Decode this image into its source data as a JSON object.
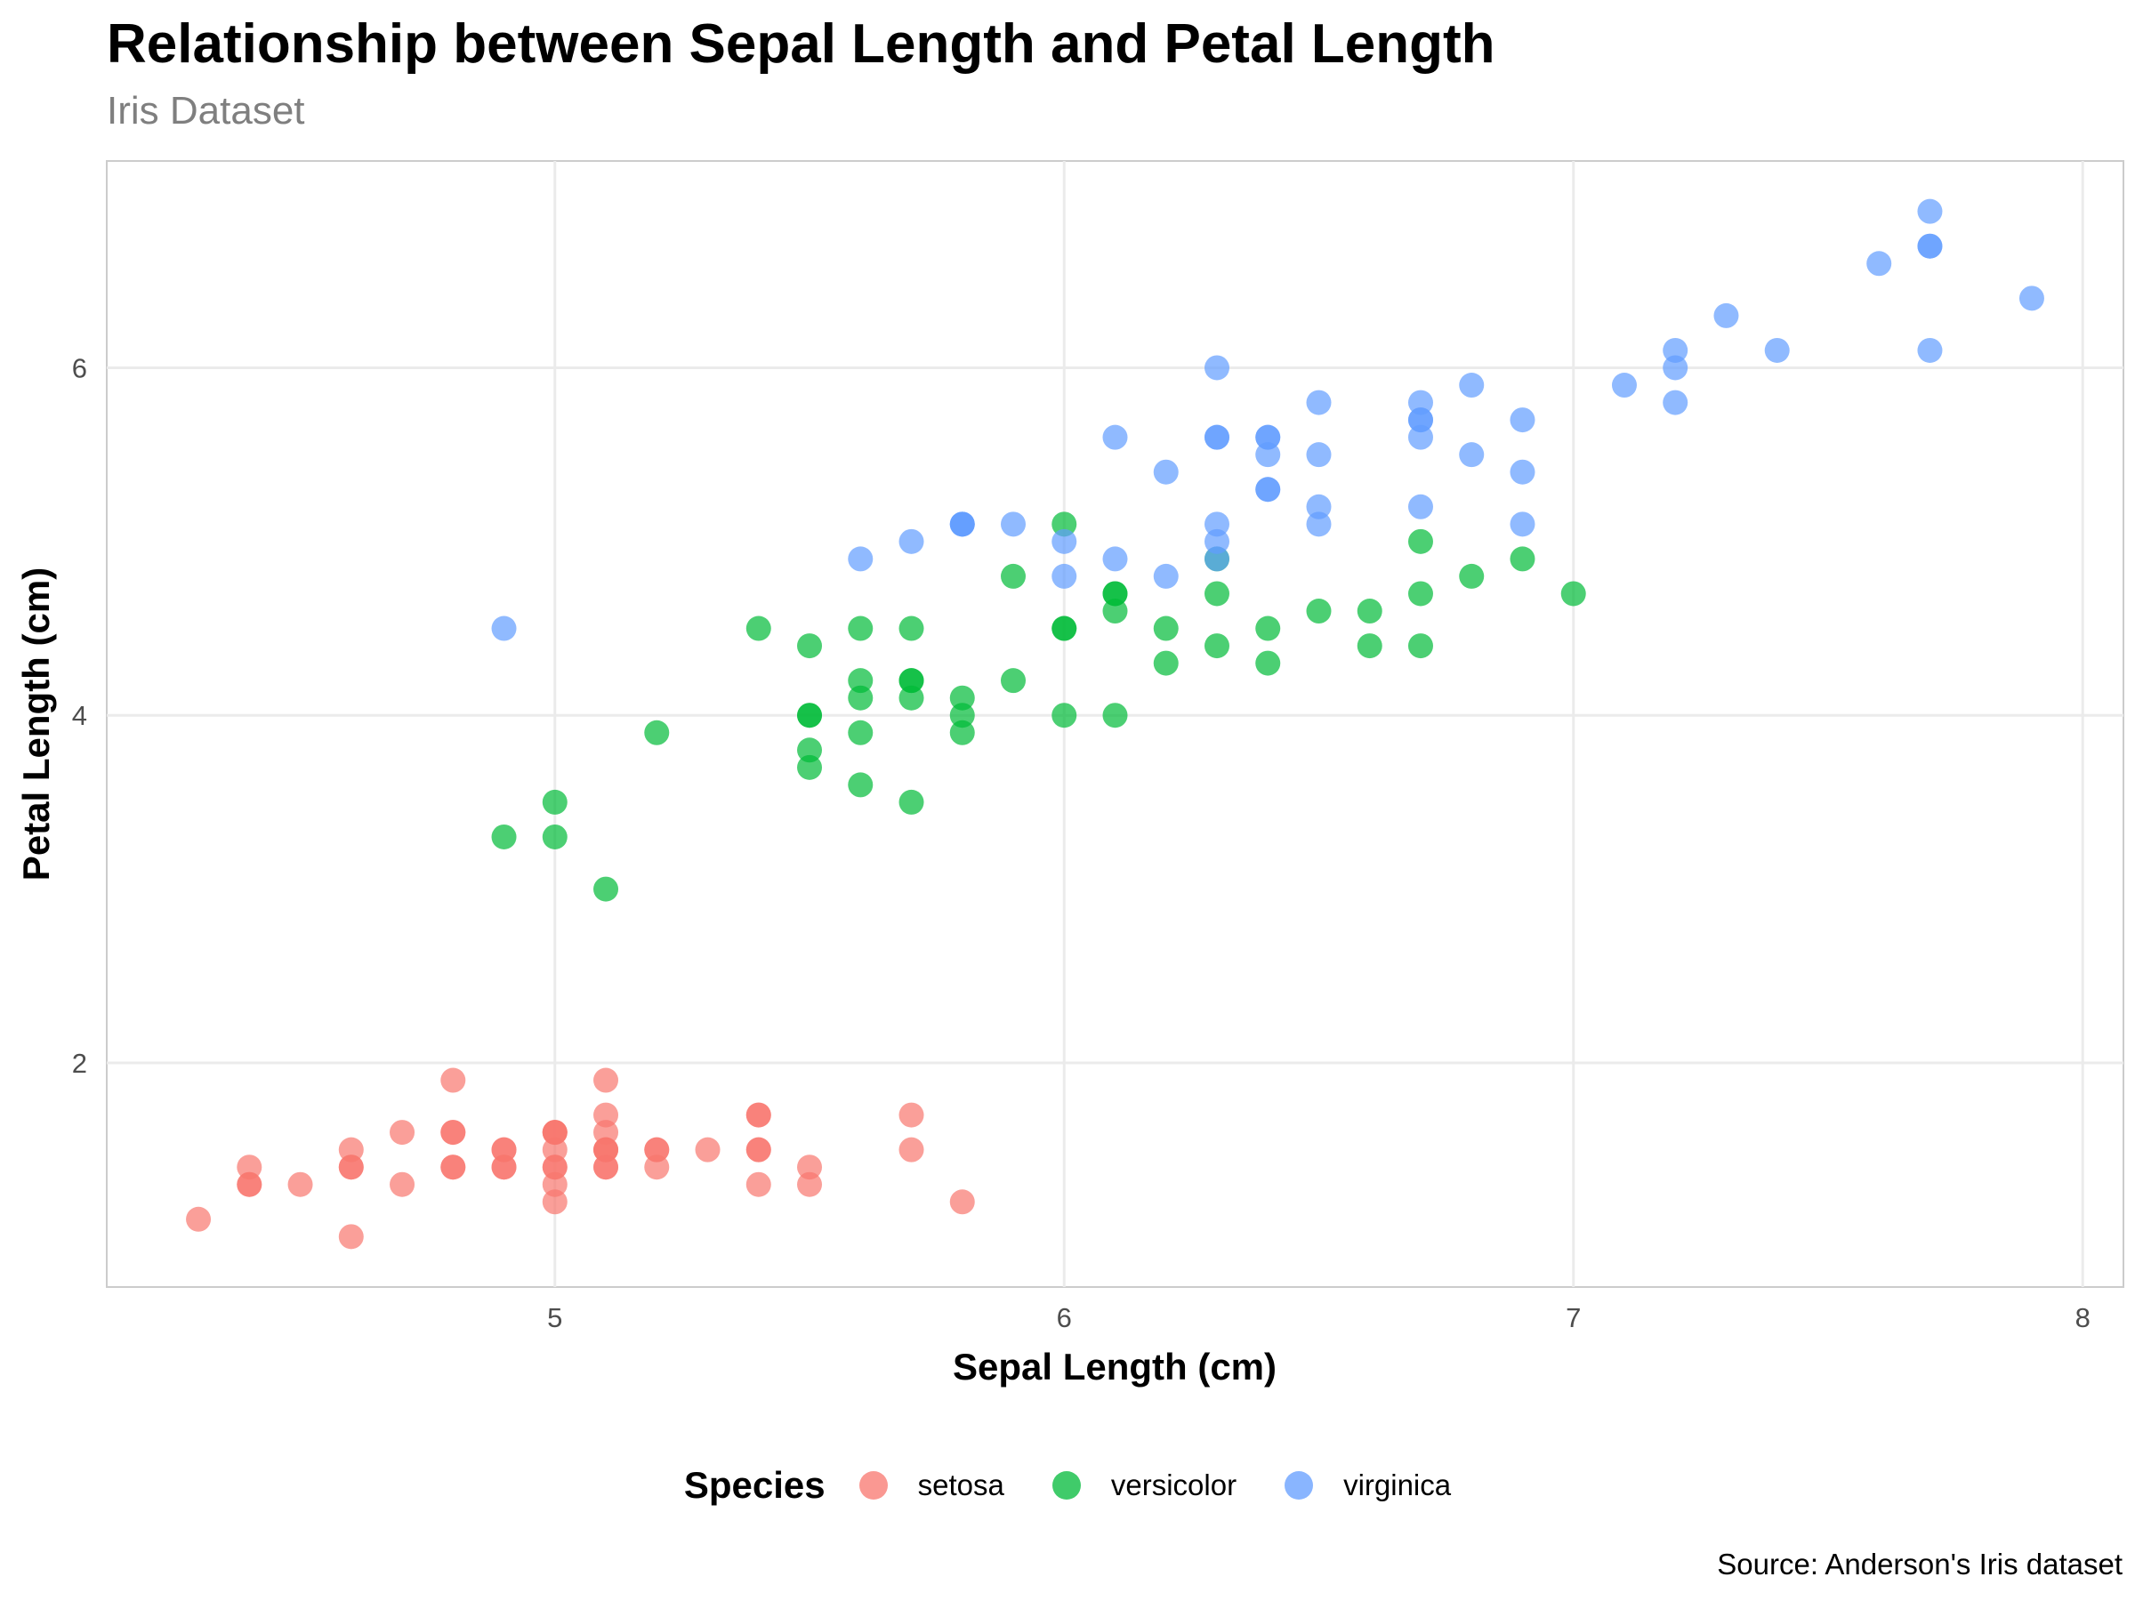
{
  "chart_data": {
    "type": "scatter",
    "title": "Relationship between Sepal Length and Petal Length",
    "subtitle": "Iris Dataset",
    "xlabel": "Sepal Length (cm)",
    "ylabel": "Petal Length (cm)",
    "caption": "Source: Anderson's Iris dataset",
    "xlim": [
      4.12,
      8.08
    ],
    "ylim": [
      0.71,
      7.19
    ],
    "xticks": [
      5,
      6,
      7,
      8
    ],
    "yticks": [
      2,
      4,
      6
    ],
    "grid": true,
    "legend": {
      "title": "Species",
      "position": "bottom"
    },
    "series": [
      {
        "name": "setosa",
        "color": "#F8766D",
        "x": [
          5.1,
          4.9,
          4.7,
          4.6,
          5.0,
          5.4,
          4.6,
          5.0,
          4.4,
          4.9,
          5.4,
          4.8,
          4.8,
          4.3,
          5.8,
          5.7,
          5.4,
          5.1,
          5.7,
          5.1,
          5.4,
          5.1,
          4.6,
          5.1,
          4.8,
          5.0,
          5.0,
          5.2,
          5.2,
          4.7,
          4.8,
          5.4,
          5.2,
          5.5,
          4.9,
          5.0,
          5.5,
          4.9,
          4.4,
          5.1,
          5.0,
          4.5,
          4.4,
          5.0,
          5.1,
          4.8,
          5.1,
          4.6,
          5.3,
          5.0
        ],
        "y": [
          1.4,
          1.4,
          1.3,
          1.5,
          1.4,
          1.7,
          1.4,
          1.5,
          1.4,
          1.5,
          1.5,
          1.6,
          1.4,
          1.1,
          1.2,
          1.5,
          1.3,
          1.4,
          1.7,
          1.5,
          1.7,
          1.5,
          1.0,
          1.7,
          1.9,
          1.6,
          1.6,
          1.5,
          1.4,
          1.6,
          1.6,
          1.5,
          1.5,
          1.4,
          1.5,
          1.2,
          1.3,
          1.4,
          1.3,
          1.5,
          1.3,
          1.3,
          1.3,
          1.6,
          1.9,
          1.4,
          1.6,
          1.4,
          1.5,
          1.4
        ]
      },
      {
        "name": "versicolor",
        "color": "#00BA38",
        "x": [
          7.0,
          6.4,
          6.9,
          5.5,
          6.5,
          5.7,
          6.3,
          4.9,
          6.6,
          5.2,
          5.0,
          5.9,
          6.0,
          6.1,
          5.6,
          6.7,
          5.6,
          5.8,
          6.2,
          5.6,
          5.9,
          6.1,
          6.3,
          6.1,
          6.4,
          6.6,
          6.8,
          6.7,
          6.0,
          5.7,
          5.5,
          5.5,
          5.8,
          6.0,
          5.4,
          6.0,
          6.7,
          6.3,
          5.6,
          5.5,
          5.5,
          6.1,
          5.8,
          5.0,
          5.6,
          5.7,
          5.7,
          6.2,
          5.1,
          5.7
        ],
        "y": [
          4.7,
          4.5,
          4.9,
          4.0,
          4.6,
          4.5,
          4.7,
          3.3,
          4.6,
          3.9,
          3.5,
          4.2,
          4.0,
          4.7,
          3.6,
          4.4,
          4.5,
          4.1,
          4.5,
          3.9,
          4.8,
          4.0,
          4.9,
          4.7,
          4.3,
          4.4,
          4.8,
          5.0,
          4.5,
          3.5,
          3.8,
          3.7,
          3.9,
          5.1,
          4.5,
          4.5,
          4.7,
          4.4,
          4.1,
          4.0,
          4.4,
          4.6,
          4.0,
          3.3,
          4.2,
          4.2,
          4.2,
          4.3,
          3.0,
          4.1
        ]
      },
      {
        "name": "virginica",
        "color": "#619CFF",
        "x": [
          6.3,
          5.8,
          7.1,
          6.3,
          6.5,
          7.6,
          4.9,
          7.3,
          6.7,
          7.2,
          6.5,
          6.4,
          6.8,
          5.7,
          5.8,
          6.4,
          6.5,
          7.7,
          7.7,
          6.0,
          6.9,
          5.6,
          7.7,
          6.3,
          6.7,
          7.2,
          6.2,
          6.1,
          6.4,
          7.2,
          7.4,
          7.9,
          6.4,
          6.3,
          6.1,
          7.7,
          6.3,
          6.4,
          6.0,
          6.9,
          6.7,
          6.9,
          5.8,
          6.8,
          6.7,
          6.7,
          6.3,
          6.5,
          6.2,
          5.9
        ],
        "y": [
          6.0,
          5.1,
          5.9,
          5.6,
          5.8,
          6.6,
          4.5,
          6.3,
          5.8,
          6.1,
          5.1,
          5.3,
          5.5,
          5.0,
          5.1,
          5.3,
          5.5,
          6.7,
          6.9,
          5.0,
          5.7,
          4.9,
          6.7,
          4.9,
          5.7,
          6.0,
          4.8,
          4.9,
          5.6,
          5.8,
          6.1,
          6.4,
          5.6,
          5.1,
          5.6,
          6.1,
          5.6,
          5.5,
          4.8,
          5.4,
          5.6,
          5.1,
          5.1,
          5.9,
          5.7,
          5.2,
          5.0,
          5.2,
          5.4,
          5.1
        ]
      }
    ]
  }
}
